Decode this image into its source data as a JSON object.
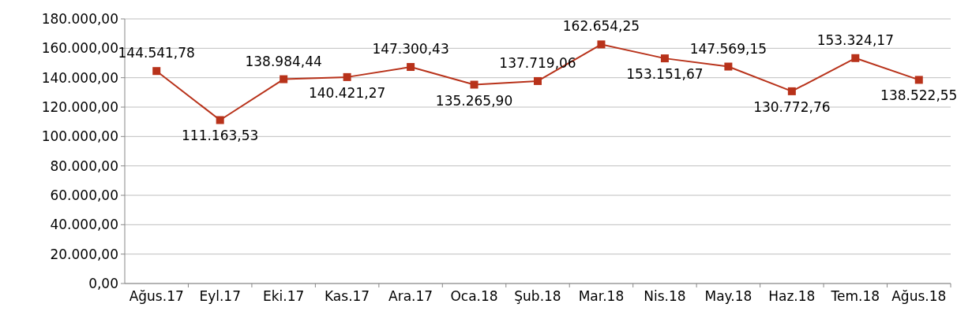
{
  "chart_data": {
    "type": "line",
    "categories": [
      "Ağus.17",
      "Eyl.17",
      "Eki.17",
      "Kas.17",
      "Ara.17",
      "Oca.18",
      "Şub.18",
      "Mar.18",
      "Nis.18",
      "May.18",
      "Haz.18",
      "Tem.18",
      "Ağus.18"
    ],
    "series": [
      {
        "color": "#b8321a",
        "values": [
          144541.78,
          111163.53,
          138984.44,
          140421.27,
          147300.43,
          135265.9,
          137719.06,
          162654.25,
          153151.67,
          147569.15,
          130772.76,
          153324.17,
          138522.55
        ],
        "value_labels": [
          "144.541,78",
          "111.163,53",
          "138.984,44",
          "140.421,27",
          "147.300,43",
          "135.265,90",
          "137.719,06",
          "162.654,25",
          "153.151,67",
          "147.569,15",
          "130.772,76",
          "153.324,17",
          "138.522,55"
        ]
      }
    ],
    "ylim": [
      0,
      180000
    ],
    "yticks": [
      {
        "value": 0,
        "label": "0,00"
      },
      {
        "value": 20000,
        "label": "20.000,00"
      },
      {
        "value": 40000,
        "label": "40.000,00"
      },
      {
        "value": 60000,
        "label": "60.000,00"
      },
      {
        "value": 80000,
        "label": "80.000,00"
      },
      {
        "value": 100000,
        "label": "100.000,00"
      },
      {
        "value": 120000,
        "label": "120.000,00"
      },
      {
        "value": 140000,
        "label": "140.000,00"
      },
      {
        "value": 160000,
        "label": "160.000,00"
      },
      {
        "value": 180000,
        "label": "180.000,00"
      }
    ],
    "grid": "y",
    "marker": "square",
    "line_style": "solid"
  }
}
